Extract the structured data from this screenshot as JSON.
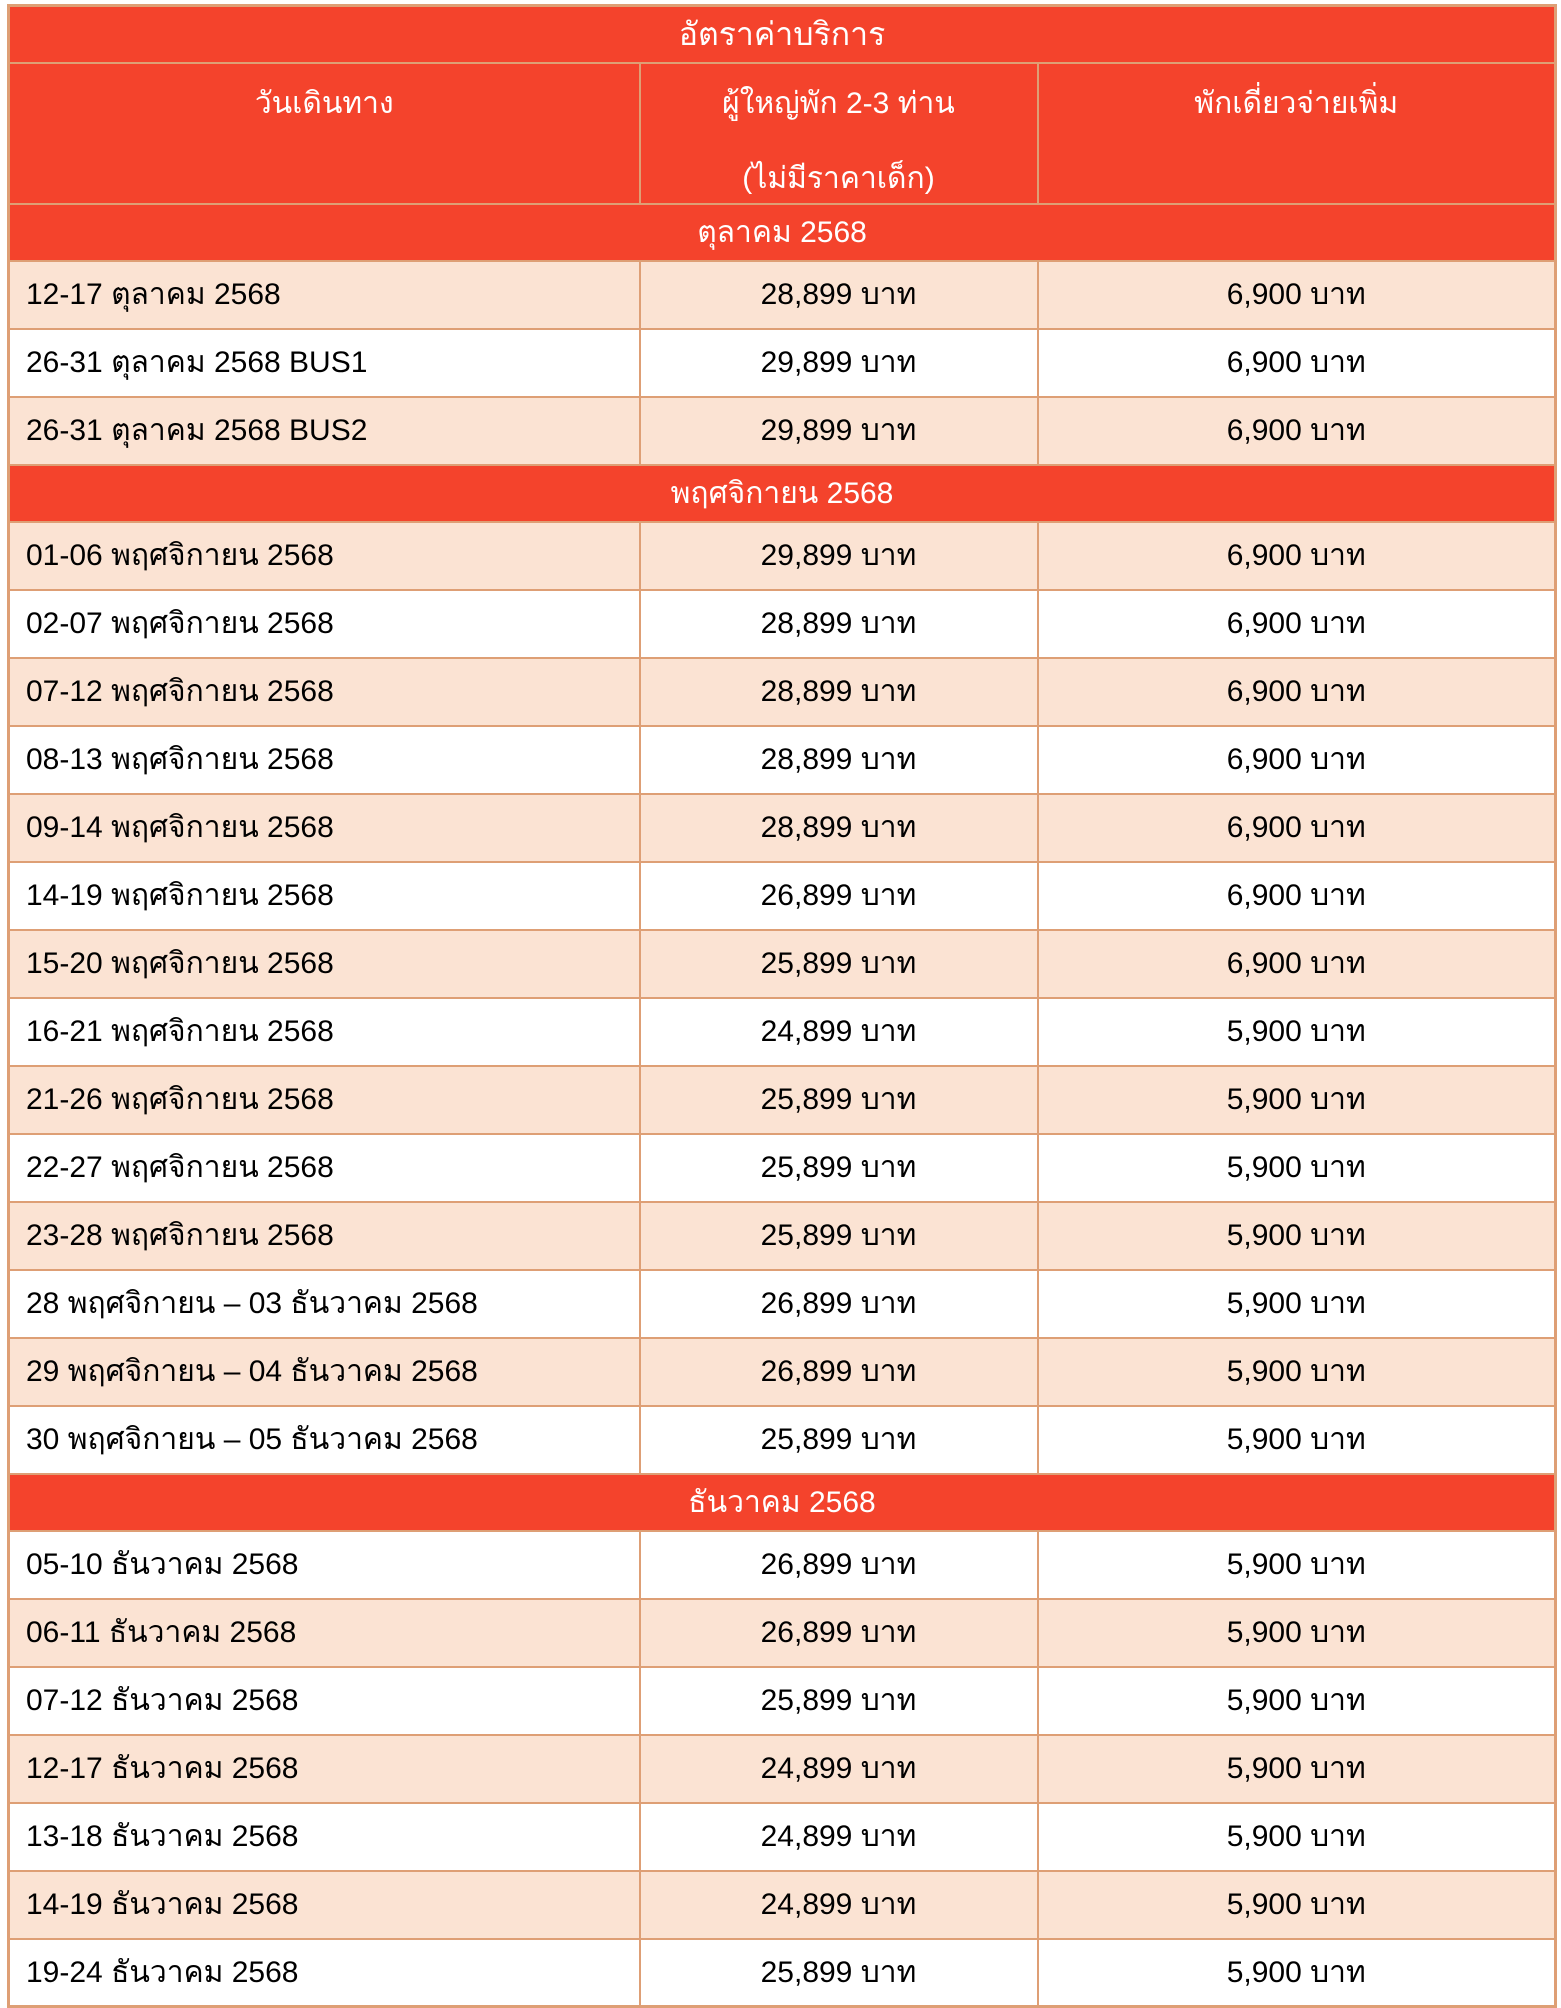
{
  "title": "อัตราค่าบริการ",
  "columns": {
    "date": "วันเดินทาง",
    "price_line1": "ผู้ใหญ่พัก 2-3 ท่าน",
    "price_line2": "(ไม่มีราคาเด็ก)",
    "single": "พักเดี่ยวจ่ายเพิ่ม"
  },
  "sections": [
    {
      "header": "ตุลาคม 2568",
      "rows": [
        {
          "date": "12-17 ตุลาคม 2568",
          "price": "28,899 บาท",
          "single": "6,900 บาท",
          "shaded": true
        },
        {
          "date": "26-31 ตุลาคม 2568 BUS1",
          "price": "29,899 บาท",
          "single": "6,900 บาท",
          "shaded": false
        },
        {
          "date": "26-31 ตุลาคม 2568 BUS2",
          "price": "29,899 บาท",
          "single": "6,900 บาท",
          "shaded": true
        }
      ]
    },
    {
      "header": "พฤศจิกายน 2568",
      "rows": [
        {
          "date": "01-06 พฤศจิกายน 2568",
          "price": "29,899 บาท",
          "single": "6,900 บาท",
          "shaded": true
        },
        {
          "date": "02-07 พฤศจิกายน 2568",
          "price": "28,899 บาท",
          "single": "6,900 บาท",
          "shaded": false
        },
        {
          "date": "07-12 พฤศจิกายน 2568",
          "price": "28,899 บาท",
          "single": "6,900 บาท",
          "shaded": true
        },
        {
          "date": "08-13 พฤศจิกายน 2568",
          "price": "28,899 บาท",
          "single": "6,900 บาท",
          "shaded": false
        },
        {
          "date": "09-14 พฤศจิกายน 2568",
          "price": "28,899 บาท",
          "single": "6,900 บาท",
          "shaded": true
        },
        {
          "date": "14-19 พฤศจิกายน 2568",
          "price": "26,899 บาท",
          "single": "6,900 บาท",
          "shaded": false
        },
        {
          "date": "15-20 พฤศจิกายน 2568",
          "price": "25,899 บาท",
          "single": "6,900 บาท",
          "shaded": true
        },
        {
          "date": "16-21 พฤศจิกายน 2568",
          "price": "24,899 บาท",
          "single": "5,900 บาท",
          "shaded": false
        },
        {
          "date": "21-26 พฤศจิกายน 2568",
          "price": "25,899 บาท",
          "single": "5,900 บาท",
          "shaded": true
        },
        {
          "date": "22-27 พฤศจิกายน 2568",
          "price": "25,899 บาท",
          "single": "5,900 บาท",
          "shaded": false
        },
        {
          "date": "23-28 พฤศจิกายน 2568",
          "price": "25,899 บาท",
          "single": "5,900 บาท",
          "shaded": true
        },
        {
          "date": "28 พฤศจิกายน – 03 ธันวาคม 2568",
          "price": "26,899 บาท",
          "single": "5,900 บาท",
          "shaded": false
        },
        {
          "date": "29 พฤศจิกายน – 04 ธันวาคม 2568",
          "price": "26,899 บาท",
          "single": "5,900 บาท",
          "shaded": true
        },
        {
          "date": "30 พฤศจิกายน – 05 ธันวาคม 2568",
          "price": "25,899 บาท",
          "single": "5,900 บาท",
          "shaded": false
        }
      ]
    },
    {
      "header": "ธันวาคม 2568",
      "rows": [
        {
          "date": "05-10 ธันวาคม 2568",
          "price": "26,899 บาท",
          "single": "5,900 บาท",
          "shaded": false
        },
        {
          "date": "06-11 ธันวาคม 2568",
          "price": "26,899 บาท",
          "single": "5,900 บาท",
          "shaded": true
        },
        {
          "date": "07-12 ธันวาคม 2568",
          "price": "25,899 บาท",
          "single": "5,900 บาท",
          "shaded": false
        },
        {
          "date": "12-17 ธันวาคม 2568",
          "price": "24,899 บาท",
          "single": "5,900 บาท",
          "shaded": true
        },
        {
          "date": "13-18 ธันวาคม 2568",
          "price": "24,899 บาท",
          "single": "5,900 บาท",
          "shaded": false
        },
        {
          "date": "14-19 ธันวาคม 2568",
          "price": "24,899 บาท",
          "single": "5,900 บาท",
          "shaded": true
        },
        {
          "date": "19-24 ธันวาคม 2568",
          "price": "25,899 บาท",
          "single": "5,900 บาท",
          "shaded": false
        }
      ]
    }
  ],
  "colors": {
    "header_red": "#F4432C",
    "row_peach": "#FBE3D3",
    "row_white": "#FFFFFF",
    "border": "#DE9F75",
    "header_text": "#FFFFFF",
    "body_text": "#000000"
  }
}
